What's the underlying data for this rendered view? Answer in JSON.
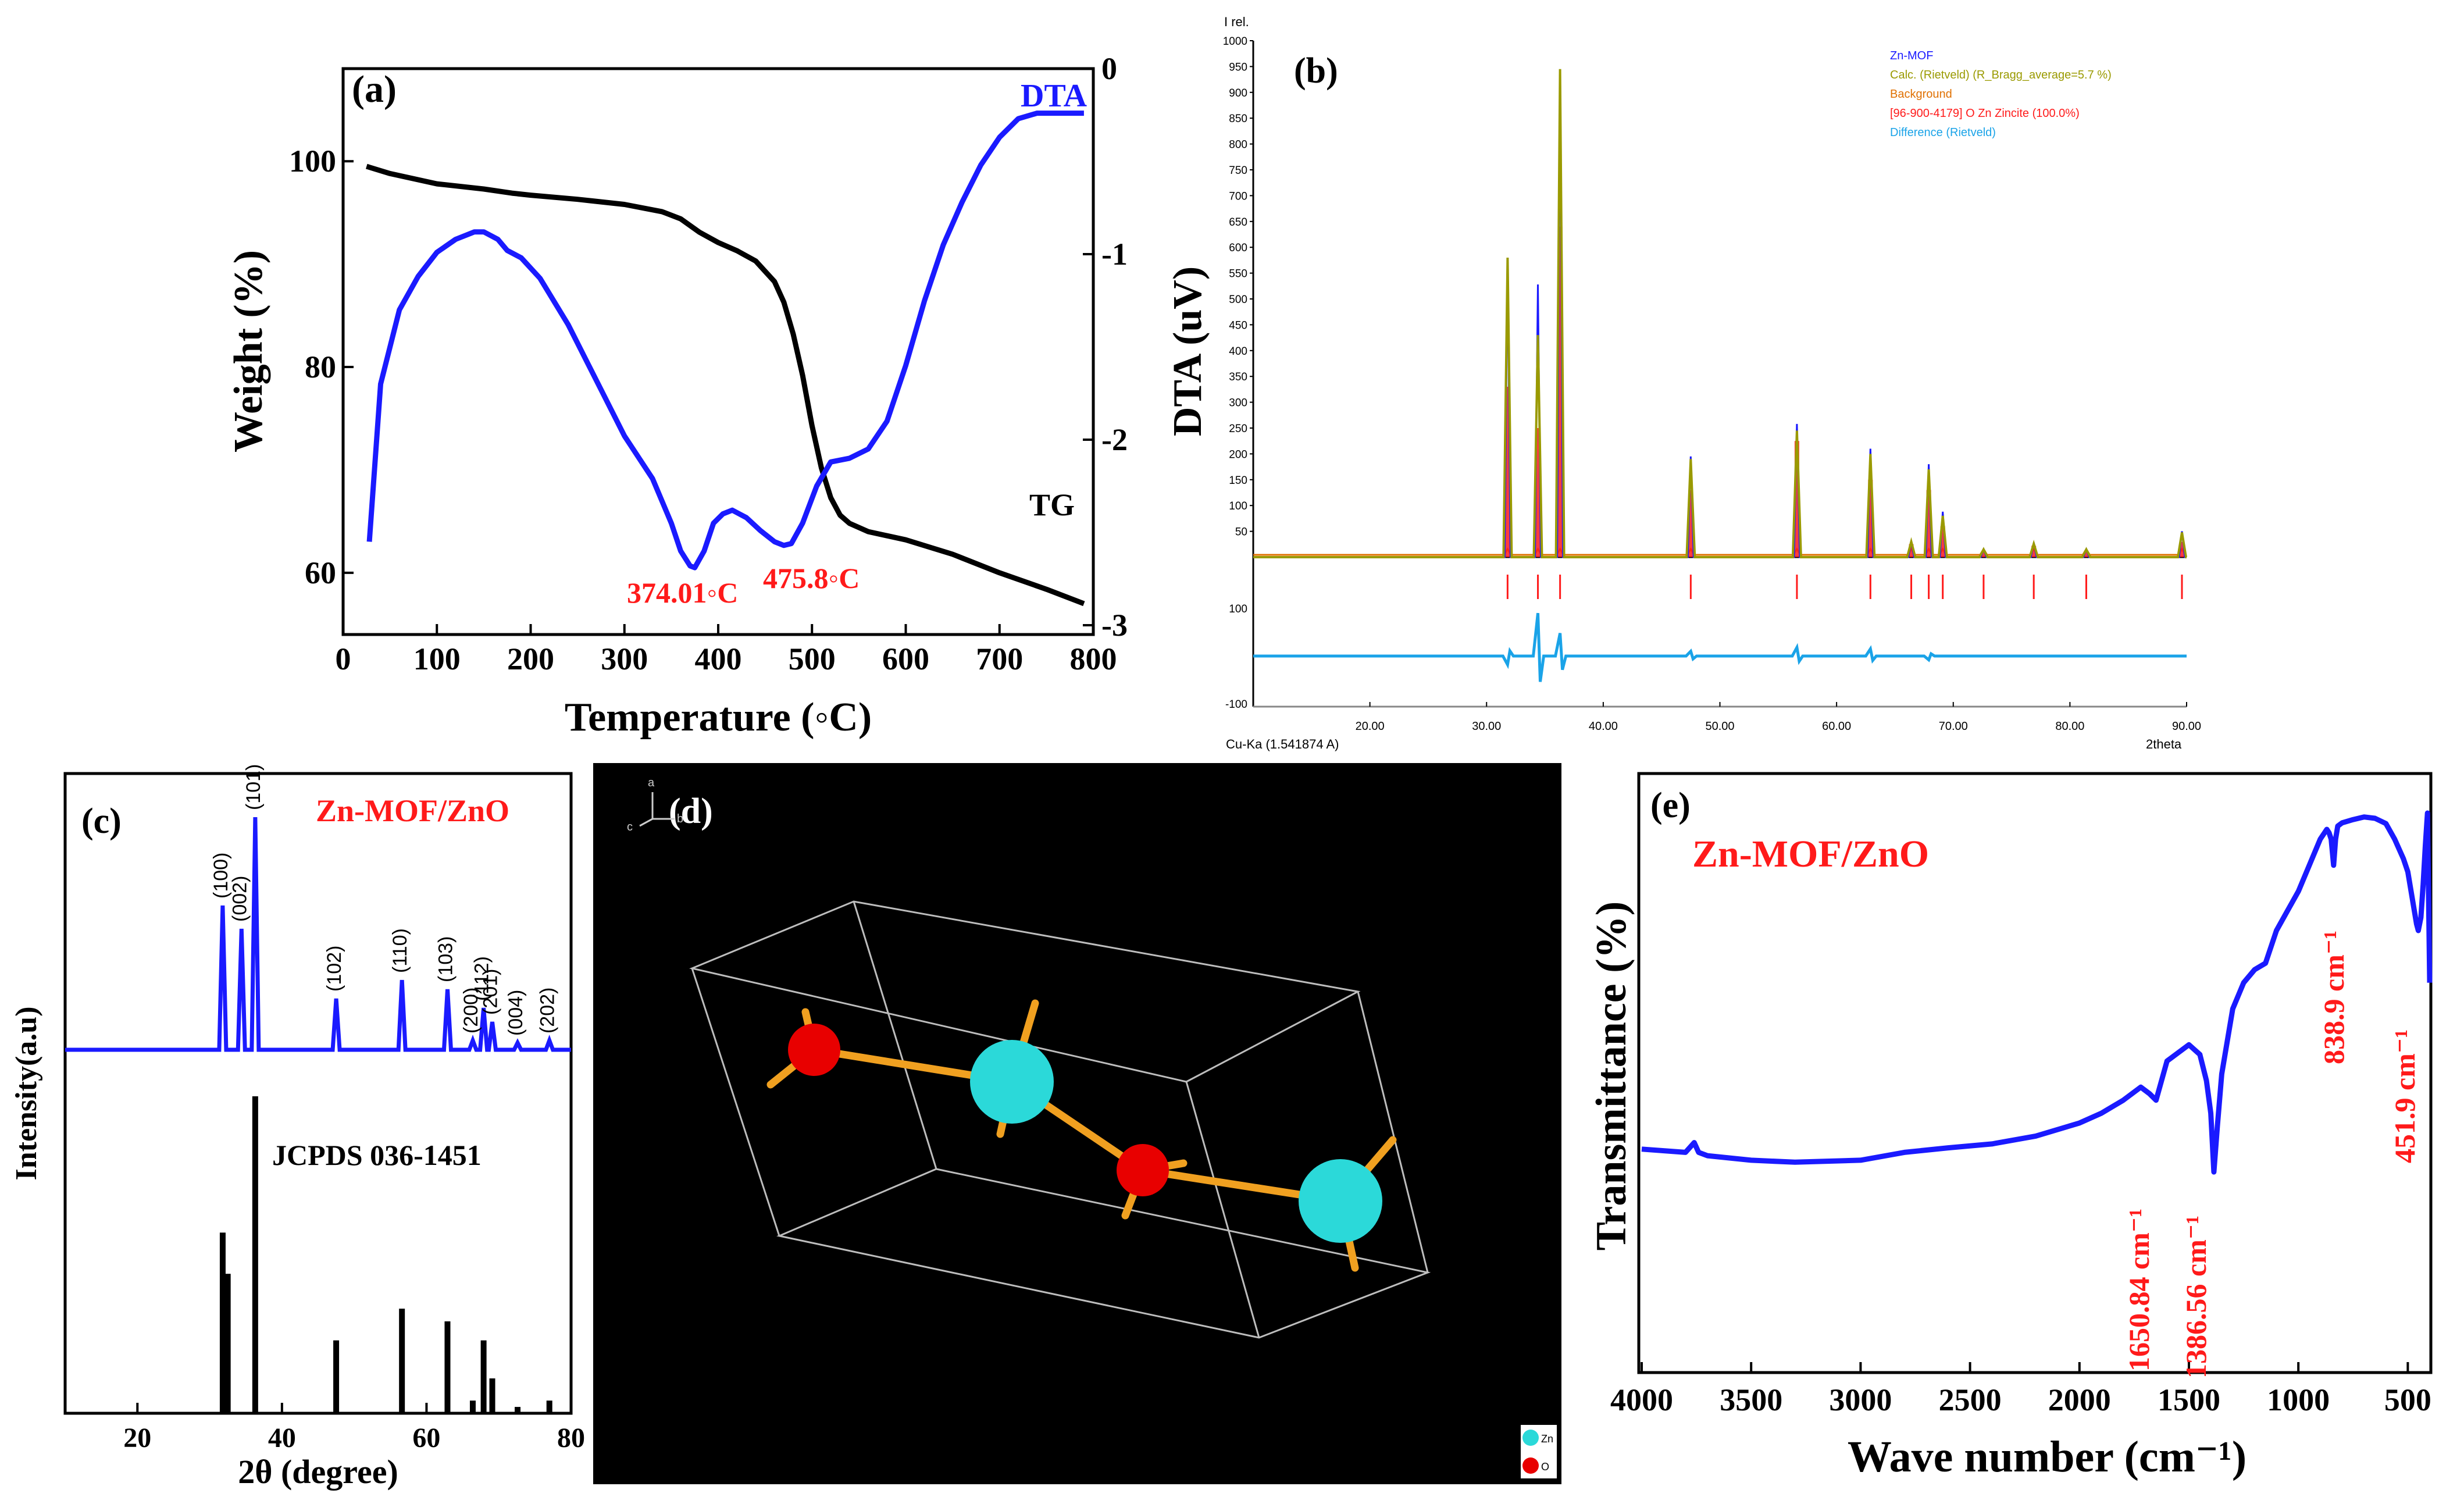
{
  "colors": {
    "black": "#000000",
    "blue": "#1a1aff",
    "red": "#ff1a1a",
    "olive": "#9a9a00",
    "orange": "#e07000",
    "cyan": "#1aa3e8",
    "zn": "#2bd9d9",
    "o": "#e80000",
    "bond": "#f0a020"
  },
  "panel_a": {
    "label": "(a)",
    "curve_dta": "DTA",
    "curve_tg": "TG",
    "peak1": "374.01◦C",
    "peak2": "475.8◦C"
  },
  "panel_b": {
    "label": "(b)",
    "y_title": "I rel.",
    "x_title": "2theta",
    "source": "Cu-Ka (1.541874 A)",
    "legend": [
      "Zn-MOF",
      "Calc. (Rietveld) (R_Bragg_average=5.7 %)",
      "Background",
      "[96-900-4179] O Zn  Zincite (100.0%)",
      "Difference (Rietveld)"
    ]
  },
  "panel_c": {
    "label": "(c)",
    "sample": "Zn-MOF/ZnO",
    "reference": "JCPDS 036-1451",
    "ylabel": "Intensity(a.u)",
    "xlabel": "2θ (degree)"
  },
  "panel_d": {
    "label": "(d)",
    "axis_a": "a",
    "axis_b": "b",
    "axis_c": "c",
    "legend_zn": "Zn",
    "legend_o": "O"
  },
  "panel_e": {
    "label": "(e)",
    "sample": "Zn-MOF/ZnO"
  },
  "chart_data": [
    {
      "type": "line",
      "panel": "a",
      "xlabel": "Temperature (◦C)",
      "ylabel": "Weight (%)",
      "y2label": "DTA (uV)",
      "xlim": [
        0,
        800
      ],
      "ylim": [
        54,
        109
      ],
      "y2lim": [
        -3,
        0
      ],
      "xticks": [
        0,
        100,
        200,
        300,
        400,
        500,
        600,
        700,
        800
      ],
      "yticks": [
        60,
        80,
        100
      ],
      "y2ticks": [
        0,
        -1,
        -2,
        -3
      ],
      "series": [
        {
          "name": "TG",
          "axis": "left",
          "x": [
            25,
            50,
            100,
            150,
            180,
            200,
            250,
            300,
            340,
            360,
            380,
            400,
            420,
            440,
            460,
            470,
            480,
            490,
            500,
            510,
            520,
            530,
            540,
            560,
            600,
            650,
            700,
            750,
            790
          ],
          "y": [
            99.5,
            98.8,
            97.8,
            97.3,
            96.9,
            96.7,
            96.3,
            95.8,
            95.1,
            94.4,
            93.1,
            92.1,
            91.3,
            90.3,
            88.3,
            86.3,
            83.2,
            79.2,
            74.3,
            70.2,
            67.3,
            65.6,
            64.8,
            64.0,
            63.2,
            61.8,
            60.0,
            58.4,
            57.0
          ]
        },
        {
          "name": "DTA",
          "axis": "right",
          "x": [
            28,
            40,
            60,
            80,
            100,
            120,
            140,
            150,
            165,
            175,
            190,
            210,
            240,
            270,
            300,
            330,
            350,
            360,
            370,
            375,
            385,
            395,
            405,
            415,
            430,
            445,
            460,
            470,
            478,
            490,
            505,
            520,
            540,
            560,
            580,
            600,
            620,
            640,
            660,
            680,
            700,
            720,
            740,
            760,
            790
          ],
          "y": [
            -2.55,
            -1.7,
            -1.3,
            -1.12,
            -0.99,
            -0.92,
            -0.88,
            -0.88,
            -0.92,
            -0.98,
            -1.02,
            -1.13,
            -1.38,
            -1.68,
            -1.98,
            -2.21,
            -2.45,
            -2.6,
            -2.68,
            -2.69,
            -2.6,
            -2.45,
            -2.4,
            -2.38,
            -2.42,
            -2.49,
            -2.55,
            -2.57,
            -2.56,
            -2.45,
            -2.25,
            -2.12,
            -2.1,
            -2.05,
            -1.9,
            -1.6,
            -1.25,
            -0.95,
            -0.72,
            -0.52,
            -0.37,
            -0.27,
            -0.24,
            -0.24,
            -0.24
          ]
        }
      ]
    },
    {
      "type": "line",
      "panel": "b",
      "xlim": [
        10,
        90
      ],
      "ylim": [
        0,
        1000
      ],
      "diff_lim": [
        -100,
        100
      ],
      "xticks": [
        "20.00",
        "30.00",
        "40.00",
        "50.00",
        "60.00",
        "70.00",
        "80.00",
        "90.00"
      ],
      "yticks": [
        50,
        100,
        150,
        200,
        250,
        300,
        350,
        400,
        450,
        500,
        550,
        600,
        650,
        700,
        750,
        800,
        850,
        900,
        950,
        1000
      ],
      "diff_ticks": [
        100,
        -100
      ],
      "peaks": [
        {
          "x": 31.8,
          "obs": 578,
          "calc": 580,
          "zincite": 330
        },
        {
          "x": 34.4,
          "obs": 528,
          "calc": 430,
          "zincite": 250
        },
        {
          "x": 36.3,
          "obs": 940,
          "calc": 945,
          "zincite": 640
        },
        {
          "x": 47.5,
          "obs": 195,
          "calc": 190,
          "zincite": 130
        },
        {
          "x": 56.6,
          "obs": 258,
          "calc": 245,
          "zincite": 225
        },
        {
          "x": 62.9,
          "obs": 210,
          "calc": 200,
          "zincite": 150
        },
        {
          "x": 66.4,
          "obs": 30,
          "calc": 30,
          "zincite": 25
        },
        {
          "x": 67.9,
          "obs": 180,
          "calc": 170,
          "zincite": 130
        },
        {
          "x": 69.1,
          "obs": 88,
          "calc": 80,
          "zincite": 60
        },
        {
          "x": 72.6,
          "obs": 15,
          "calc": 15,
          "zincite": 12
        },
        {
          "x": 76.9,
          "obs": 28,
          "calc": 26,
          "zincite": 22
        },
        {
          "x": 81.4,
          "obs": 15,
          "calc": 15,
          "zincite": 12
        },
        {
          "x": 89.6,
          "obs": 50,
          "calc": 48,
          "zincite": 30
        }
      ],
      "reflections": [
        31.8,
        34.4,
        36.3,
        47.5,
        56.6,
        62.9,
        66.4,
        67.9,
        69.1,
        72.6,
        76.9,
        81.4,
        89.6
      ],
      "difference": [
        {
          "x": 31.8,
          "y": -18
        },
        {
          "x": 34.4,
          "y": 90
        },
        {
          "x": 36.3,
          "y": 48
        },
        {
          "x": 47.5,
          "y": 10
        },
        {
          "x": 56.6,
          "y": 18
        },
        {
          "x": 62.9,
          "y": 15
        },
        {
          "x": 67.9,
          "y": -8
        }
      ]
    },
    {
      "type": "bar",
      "panel": "c",
      "xlim": [
        10,
        80
      ],
      "xticks": [
        20,
        40,
        60,
        80
      ],
      "pattern_peaks": [
        {
          "x": 31.8,
          "y": 0.62,
          "hkl": "(100)"
        },
        {
          "x": 34.4,
          "y": 0.52,
          "hkl": "(002)"
        },
        {
          "x": 36.3,
          "y": 1.0,
          "hkl": "(101)"
        },
        {
          "x": 47.5,
          "y": 0.22,
          "hkl": "(102)"
        },
        {
          "x": 56.6,
          "y": 0.3,
          "hkl": "(110)"
        },
        {
          "x": 62.9,
          "y": 0.26,
          "hkl": "(103)"
        },
        {
          "x": 66.4,
          "y": 0.04,
          "hkl": "(200)"
        },
        {
          "x": 67.9,
          "y": 0.18,
          "hkl": "(112)"
        },
        {
          "x": 69.1,
          "y": 0.12,
          "hkl": "(201)"
        },
        {
          "x": 72.6,
          "y": 0.03,
          "hkl": "(004)"
        },
        {
          "x": 77.0,
          "y": 0.04,
          "hkl": "(202)"
        }
      ],
      "reference_bars": [
        {
          "x": 31.8,
          "y": 0.57
        },
        {
          "x": 32.5,
          "y": 0.44
        },
        {
          "x": 36.3,
          "y": 1.0
        },
        {
          "x": 47.5,
          "y": 0.23
        },
        {
          "x": 56.6,
          "y": 0.33
        },
        {
          "x": 62.9,
          "y": 0.29
        },
        {
          "x": 66.4,
          "y": 0.04
        },
        {
          "x": 67.9,
          "y": 0.23
        },
        {
          "x": 69.1,
          "y": 0.11
        },
        {
          "x": 72.6,
          "y": 0.02
        },
        {
          "x": 77.0,
          "y": 0.04
        }
      ]
    },
    {
      "type": "line",
      "panel": "e",
      "xlabel": "Wave number (cm⁻¹)",
      "ylabel": "Transmittance (%)",
      "xlim": [
        4000,
        400
      ],
      "ylim": [
        0,
        100
      ],
      "xticks": [
        4000,
        3500,
        3000,
        2500,
        2000,
        1500,
        1000,
        500
      ],
      "series": [
        {
          "name": "Zn-MOF/ZnO",
          "x": [
            4000,
            3800,
            3760,
            3740,
            3700,
            3500,
            3300,
            3000,
            2800,
            2600,
            2400,
            2200,
            2000,
            1900,
            1800,
            1720,
            1680,
            1650,
            1600,
            1500,
            1450,
            1420,
            1400,
            1386,
            1370,
            1350,
            1300,
            1250,
            1200,
            1150,
            1100,
            1050,
            1000,
            950,
            900,
            870,
            860,
            850,
            839,
            830,
            820,
            800,
            750,
            700,
            650,
            600,
            560,
            520,
            500,
            480,
            460,
            452,
            440,
            430,
            420,
            410,
            400
          ],
          "y": [
            48.5,
            48,
            49.5,
            48,
            47.5,
            46.8,
            46.5,
            46.8,
            48,
            48.7,
            49.3,
            50.5,
            52.5,
            54,
            56,
            58,
            57,
            56,
            62,
            64.5,
            63,
            59,
            54,
            45,
            52,
            60,
            70,
            74,
            76,
            77,
            82,
            85,
            88,
            92,
            96,
            97.5,
            97,
            96,
            92,
            96,
            98,
            98.5,
            99,
            99.4,
            99.2,
            98.4,
            96,
            93,
            91,
            87,
            83,
            82,
            84,
            89,
            95,
            100,
            74
          ]
        }
      ],
      "annotations": [
        "1650.84 cm⁻¹",
        "1386.56 cm⁻¹",
        "838.9 cm⁻¹",
        "451.9 cm⁻¹"
      ]
    }
  ]
}
